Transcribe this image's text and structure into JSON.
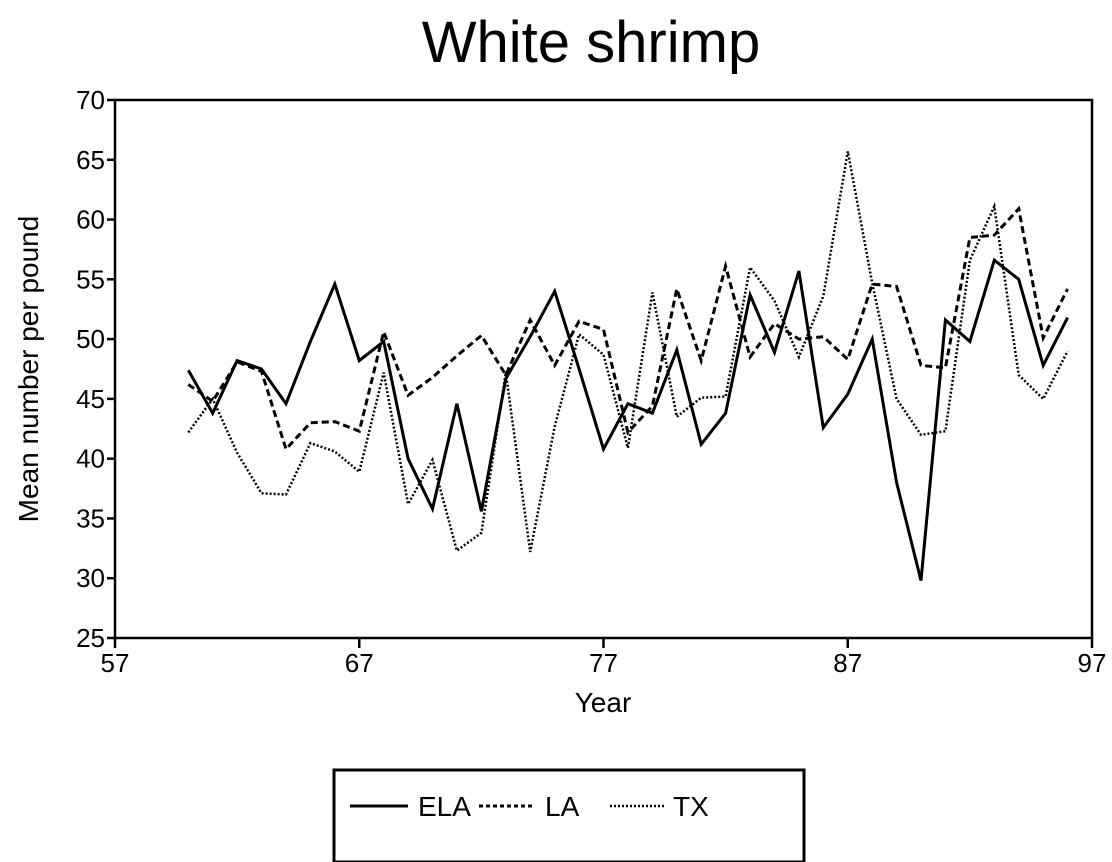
{
  "chart_data": {
    "type": "line",
    "title": "White shrimp",
    "xlabel": "Year",
    "ylabel": "Mean number per pound",
    "xlim": [
      57,
      97
    ],
    "ylim": [
      25,
      70
    ],
    "xticks": [
      57,
      67,
      77,
      87,
      97
    ],
    "yticks": [
      25,
      30,
      35,
      40,
      45,
      50,
      55,
      60,
      65,
      70
    ],
    "grid": false,
    "legend_position": "bottom",
    "x": [
      60,
      61,
      62,
      63,
      64,
      65,
      66,
      67,
      68,
      69,
      70,
      71,
      72,
      73,
      74,
      75,
      76,
      77,
      78,
      79,
      80,
      81,
      82,
      83,
      84,
      85,
      86,
      87,
      88,
      89,
      90,
      91,
      92,
      93,
      94,
      95,
      96
    ],
    "series": [
      {
        "name": "ELA",
        "style": "solid",
        "color": "#000000",
        "values": [
          47.4,
          43.8,
          48.2,
          47.5,
          44.6,
          49.8,
          54.6,
          48.2,
          49.8,
          40.0,
          35.8,
          44.6,
          35.6,
          46.7,
          50.2,
          54.0,
          47.5,
          40.8,
          44.6,
          43.8,
          49.1,
          41.2,
          43.8,
          53.7,
          48.9,
          55.7,
          42.6,
          45.4,
          50.0,
          38.0,
          29.8,
          51.6,
          49.8,
          56.6,
          55.0,
          47.8,
          51.8
        ]
      },
      {
        "name": "LA",
        "style": "dashed",
        "color": "#000000",
        "values": [
          46.2,
          44.8,
          48.1,
          47.3,
          40.8,
          43.0,
          43.1,
          42.3,
          50.6,
          45.3,
          46.8,
          48.6,
          50.3,
          47.0,
          51.6,
          47.8,
          51.5,
          50.8,
          42.2,
          44.4,
          54.2,
          48.2,
          56.1,
          48.5,
          51.3,
          50.0,
          50.2,
          48.3,
          54.6,
          54.4,
          47.8,
          47.6,
          58.5,
          58.7,
          60.9,
          50.1,
          54.2
        ]
      },
      {
        "name": "TX",
        "style": "dotted",
        "color": "#000000",
        "values": [
          42.2,
          45.0,
          40.5,
          37.1,
          37.0,
          41.3,
          40.6,
          38.9,
          47.2,
          36.2,
          39.9,
          32.3,
          33.8,
          47.2,
          32.2,
          42.7,
          50.4,
          48.7,
          40.9,
          53.9,
          43.5,
          45.1,
          45.2,
          56.0,
          53.2,
          48.5,
          53.6,
          65.7,
          54.7,
          45.0,
          42.0,
          42.3,
          56.6,
          61.1,
          47.0,
          45.0,
          49.0
        ]
      }
    ]
  }
}
